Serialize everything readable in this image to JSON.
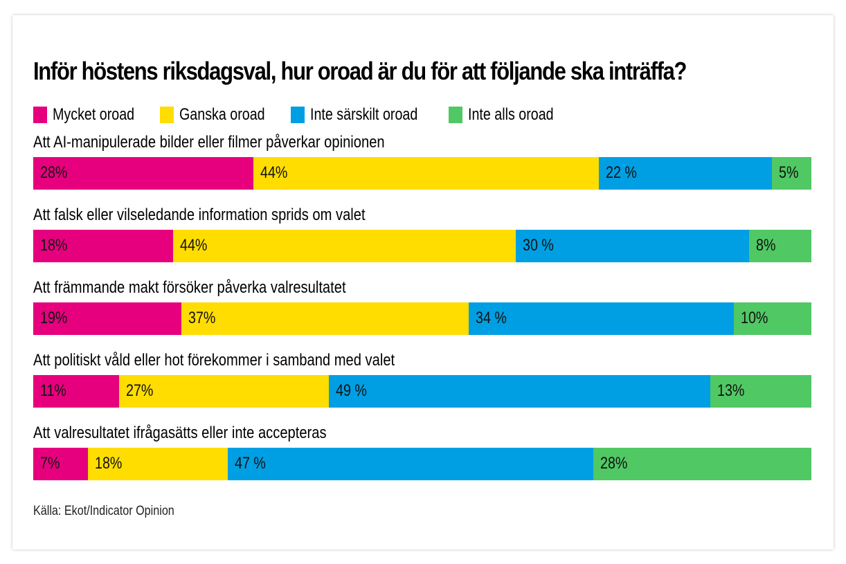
{
  "chart_data": {
    "type": "bar",
    "orientation": "horizontal",
    "stacked": true,
    "title": "Inför höstens riksdagsval, hur oroad är du för att följande ska inträffa?",
    "xlabel": "",
    "ylabel": "",
    "xlim": [
      0,
      100
    ],
    "grid": false,
    "legend_position": "top-left",
    "categories": [
      "Att AI-manipulerade bilder eller filmer påverkar opinionen",
      "Att falsk eller vilseledande information sprids om valet",
      "Att främmande makt försöker påverka valresultatet",
      "Att politiskt våld eller hot förekommer i samband med valet",
      "Att valresultatet ifrågasätts eller inte accepteras"
    ],
    "series": [
      {
        "name": "Mycket oroad",
        "color": "#E6007E",
        "values": [
          28,
          18,
          19,
          11,
          7
        ],
        "labels": [
          "28%",
          "18%",
          "19%",
          "11%",
          "7%"
        ]
      },
      {
        "name": "Ganska oroad",
        "color": "#FFDD00",
        "values": [
          44,
          44,
          37,
          27,
          18
        ],
        "labels": [
          "44%",
          "44%",
          "37%",
          "27%",
          "18%"
        ]
      },
      {
        "name": "Inte särskilt oroad",
        "color": "#009FE3",
        "values": [
          22,
          30,
          34,
          49,
          47
        ],
        "labels": [
          "22 %",
          "30 %",
          "34 %",
          "49 %",
          "47 %"
        ]
      },
      {
        "name": "Inte alls oroad",
        "color": "#50C864",
        "values": [
          5,
          8,
          10,
          13,
          28
        ],
        "labels": [
          "5%",
          "8%",
          "10%",
          "13%",
          "28%"
        ]
      }
    ],
    "source": "Källa: Ekot/Indicator Opinion"
  }
}
